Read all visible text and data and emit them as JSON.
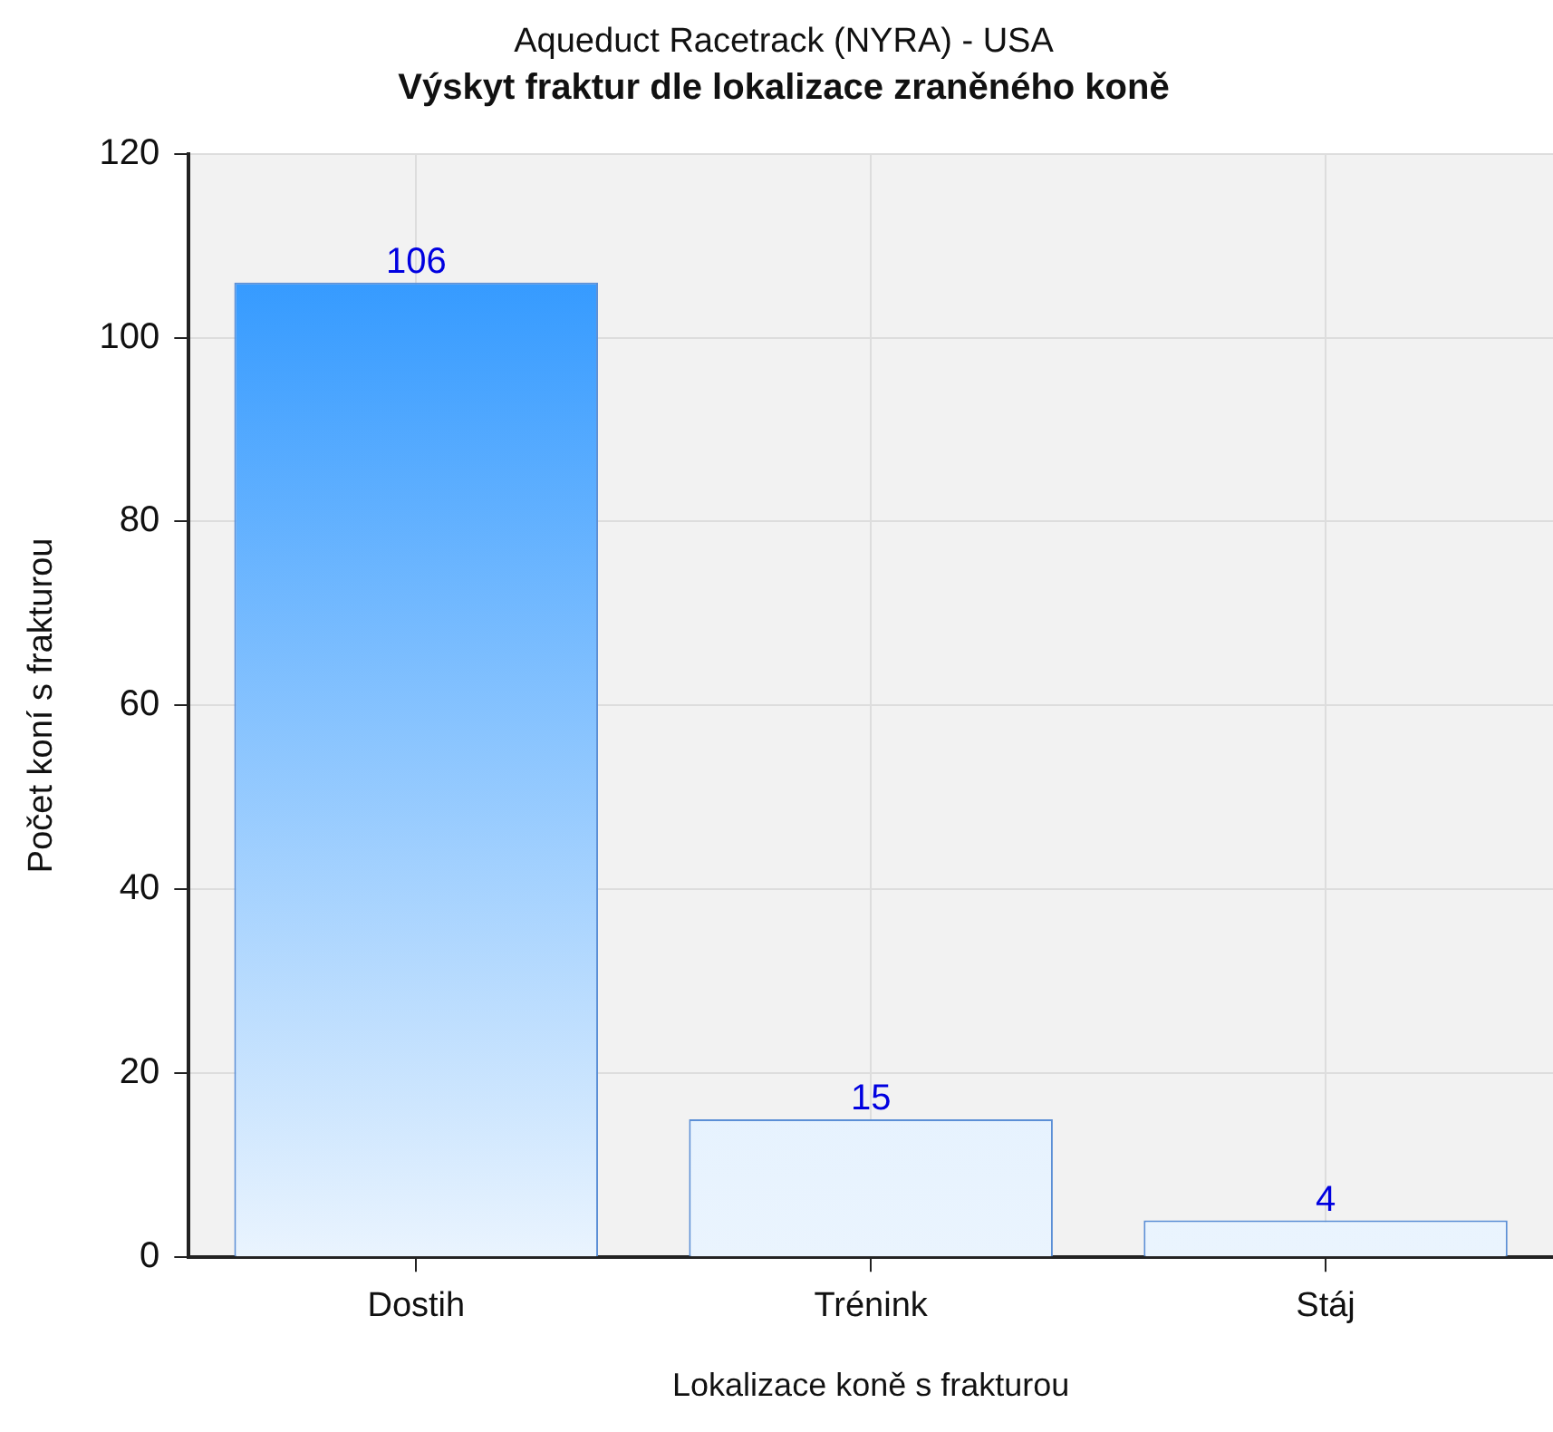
{
  "chart_data": {
    "type": "bar",
    "title": "Aqueduct Racetrack (NYRA) - USA",
    "subtitle": "Výskyt fraktur dle lokalizace zraněného koně",
    "xlabel": "Lokalizace koně s frakturou",
    "ylabel": "Počet koní s frakturou",
    "categories": [
      "Dostih",
      "Trénink",
      "Stáj"
    ],
    "values": [
      106,
      15,
      4
    ],
    "colors": [
      "#1e8fff",
      "#cde6fd",
      "#dbedfd"
    ],
    "ylim": [
      0,
      120
    ],
    "yticks": [
      0,
      20,
      40,
      60,
      80,
      100,
      120
    ],
    "grid": true,
    "data_labels": true,
    "legend": false
  }
}
